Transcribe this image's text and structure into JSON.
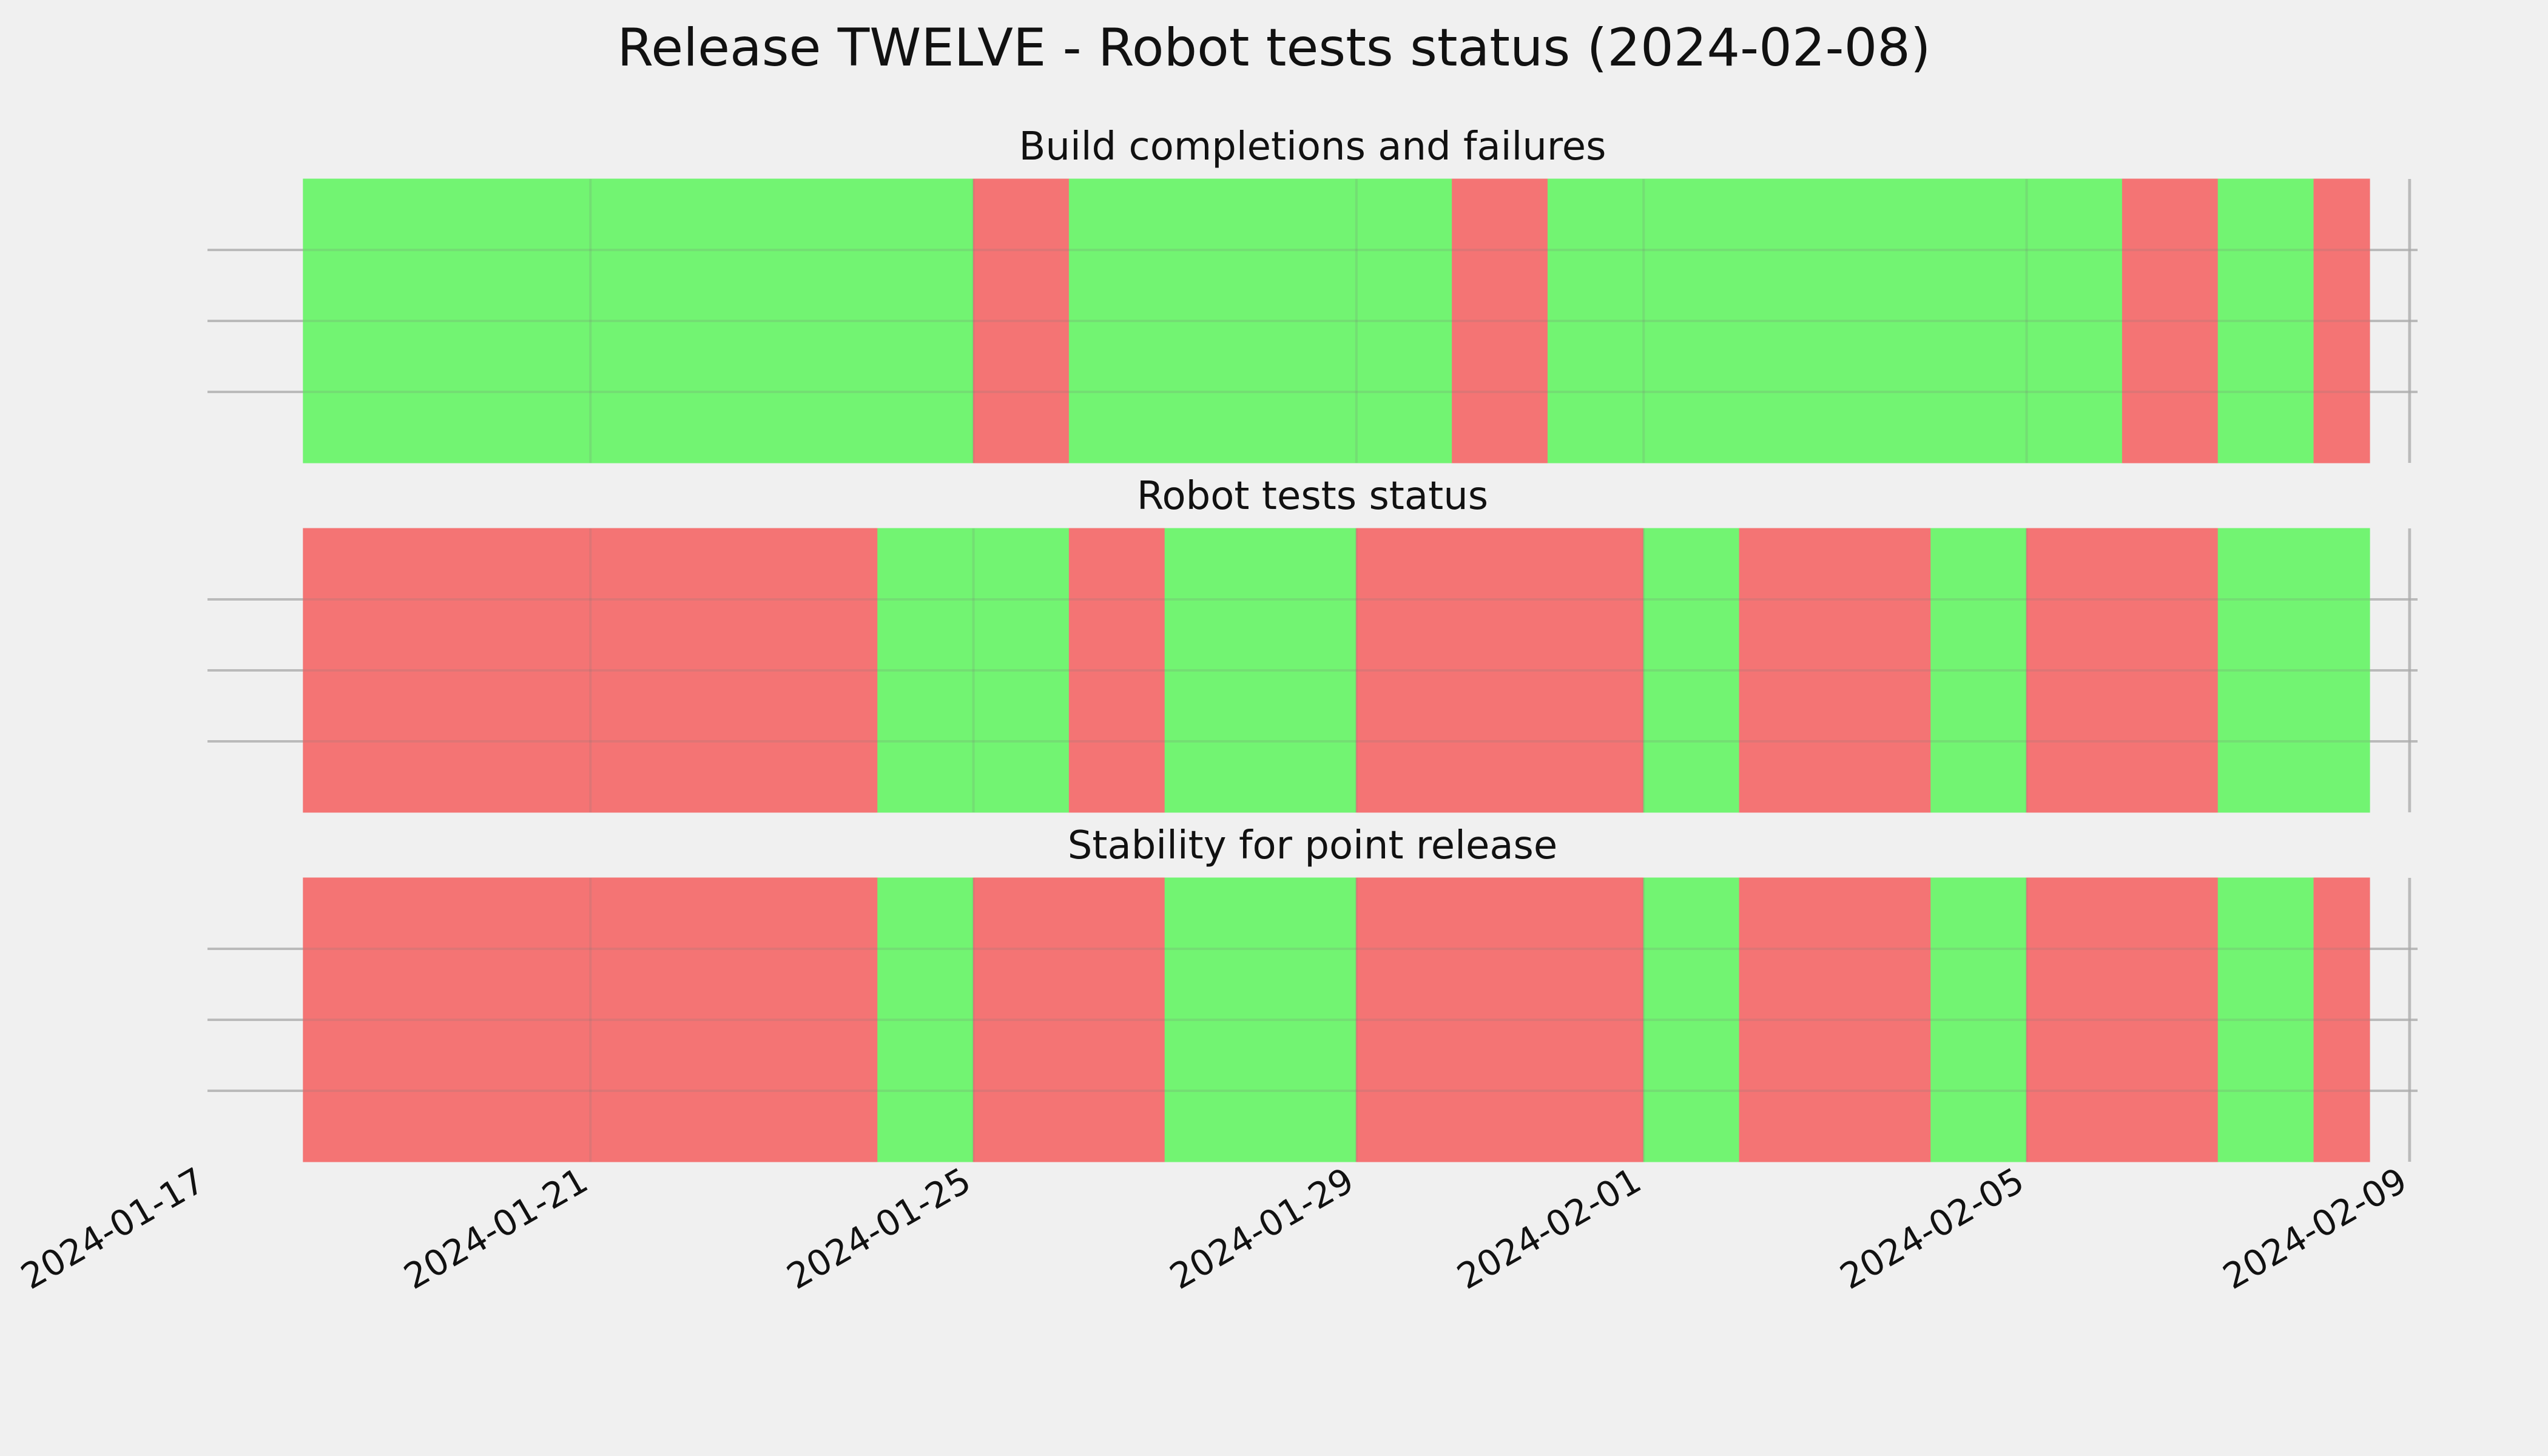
{
  "chart_data": {
    "type": "status_timeline",
    "title": "Release TWELVE - Robot tests status (2024-02-08)",
    "xlabel": "",
    "ylabel": "",
    "x_axis": {
      "type": "date",
      "ticks": [
        "2024-01-17",
        "2024-01-21",
        "2024-01-25",
        "2024-01-29",
        "2024-02-01",
        "2024-02-05",
        "2024-02-09"
      ],
      "range": [
        "2024-01-17",
        "2024-02-09T02:00"
      ]
    },
    "grid": true,
    "legend": "none",
    "colors": {
      "pass": "#72f472",
      "fail": "#f47474",
      "background": "#f0f0f0",
      "grid": "#c8c8c8"
    },
    "panels": [
      {
        "title": "Build completions and failures",
        "segments": [
          {
            "start": "2024-01-18T00:00",
            "end": "2024-01-25T00:00",
            "status": "pass"
          },
          {
            "start": "2024-01-25T00:00",
            "end": "2024-01-26T00:00",
            "status": "fail"
          },
          {
            "start": "2024-01-26T00:00",
            "end": "2024-01-30T00:00",
            "status": "pass"
          },
          {
            "start": "2024-01-30T00:00",
            "end": "2024-01-31T00:00",
            "status": "fail"
          },
          {
            "start": "2024-01-31T00:00",
            "end": "2024-02-06T00:00",
            "status": "pass"
          },
          {
            "start": "2024-02-06T00:00",
            "end": "2024-02-07T00:00",
            "status": "fail"
          },
          {
            "start": "2024-02-07T00:00",
            "end": "2024-02-08T00:00",
            "status": "pass"
          },
          {
            "start": "2024-02-08T00:00",
            "end": "2024-02-08T14:00",
            "status": "fail"
          }
        ]
      },
      {
        "title": "Robot tests status",
        "segments": [
          {
            "start": "2024-01-18T00:00",
            "end": "2024-01-24T00:00",
            "status": "fail"
          },
          {
            "start": "2024-01-24T00:00",
            "end": "2024-01-26T00:00",
            "status": "pass"
          },
          {
            "start": "2024-01-26T00:00",
            "end": "2024-01-27T00:00",
            "status": "fail"
          },
          {
            "start": "2024-01-27T00:00",
            "end": "2024-01-29T00:00",
            "status": "pass"
          },
          {
            "start": "2024-01-29T00:00",
            "end": "2024-02-01T00:00",
            "status": "fail"
          },
          {
            "start": "2024-02-01T00:00",
            "end": "2024-02-02T00:00",
            "status": "pass"
          },
          {
            "start": "2024-02-02T00:00",
            "end": "2024-02-04T00:00",
            "status": "fail"
          },
          {
            "start": "2024-02-04T00:00",
            "end": "2024-02-05T00:00",
            "status": "pass"
          },
          {
            "start": "2024-02-05T00:00",
            "end": "2024-02-07T00:00",
            "status": "fail"
          },
          {
            "start": "2024-02-07T00:00",
            "end": "2024-02-08T14:00",
            "status": "pass"
          }
        ]
      },
      {
        "title": "Stability for point release",
        "segments": [
          {
            "start": "2024-01-18T00:00",
            "end": "2024-01-24T00:00",
            "status": "fail"
          },
          {
            "start": "2024-01-24T00:00",
            "end": "2024-01-25T00:00",
            "status": "pass"
          },
          {
            "start": "2024-01-25T00:00",
            "end": "2024-01-27T00:00",
            "status": "fail"
          },
          {
            "start": "2024-01-27T00:00",
            "end": "2024-01-29T00:00",
            "status": "pass"
          },
          {
            "start": "2024-01-29T00:00",
            "end": "2024-02-01T00:00",
            "status": "fail"
          },
          {
            "start": "2024-02-01T00:00",
            "end": "2024-02-02T00:00",
            "status": "pass"
          },
          {
            "start": "2024-02-02T00:00",
            "end": "2024-02-04T00:00",
            "status": "fail"
          },
          {
            "start": "2024-02-04T00:00",
            "end": "2024-02-05T00:00",
            "status": "pass"
          },
          {
            "start": "2024-02-05T00:00",
            "end": "2024-02-07T00:00",
            "status": "fail"
          },
          {
            "start": "2024-02-07T00:00",
            "end": "2024-02-08T00:00",
            "status": "pass"
          },
          {
            "start": "2024-02-08T00:00",
            "end": "2024-02-08T14:00",
            "status": "fail"
          }
        ]
      }
    ]
  }
}
